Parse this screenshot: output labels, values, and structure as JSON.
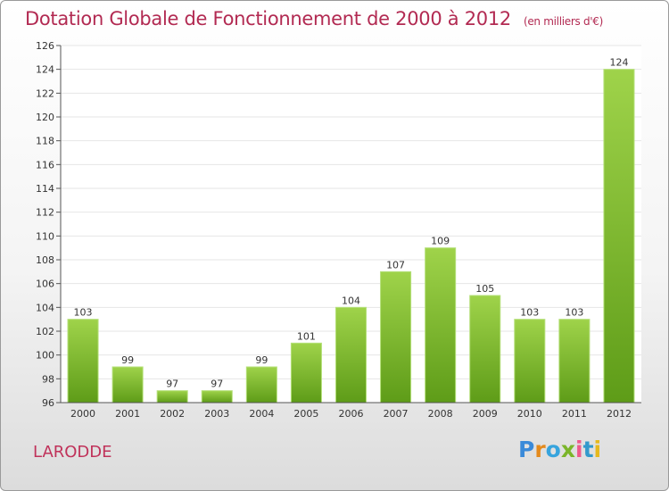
{
  "title": "Dotation Globale de Fonctionnement de 2000 à 2012",
  "unit_note": "(en milliers d'€)",
  "commune": "LARODDE",
  "logo": {
    "text": "Proxiti"
  },
  "colors": {
    "title": "#b22a52",
    "bar_top": "#9fd34a",
    "bar_bottom": "#5e9c18",
    "grid": "#e6e6e6"
  },
  "chart_data": {
    "type": "bar",
    "title": "Dotation Globale de Fonctionnement de 2000 à 2012",
    "categories": [
      "2000",
      "2001",
      "2002",
      "2003",
      "2004",
      "2005",
      "2006",
      "2007",
      "2008",
      "2009",
      "2010",
      "2011",
      "2012"
    ],
    "values": [
      103,
      99,
      97,
      97,
      99,
      101,
      104,
      107,
      109,
      105,
      103,
      103,
      124
    ],
    "ylim": [
      96,
      126
    ],
    "yticks": [
      96,
      98,
      100,
      102,
      104,
      106,
      108,
      110,
      112,
      114,
      116,
      118,
      120,
      122,
      124,
      126
    ],
    "xlabel": "",
    "ylabel": "",
    "grid": true
  }
}
